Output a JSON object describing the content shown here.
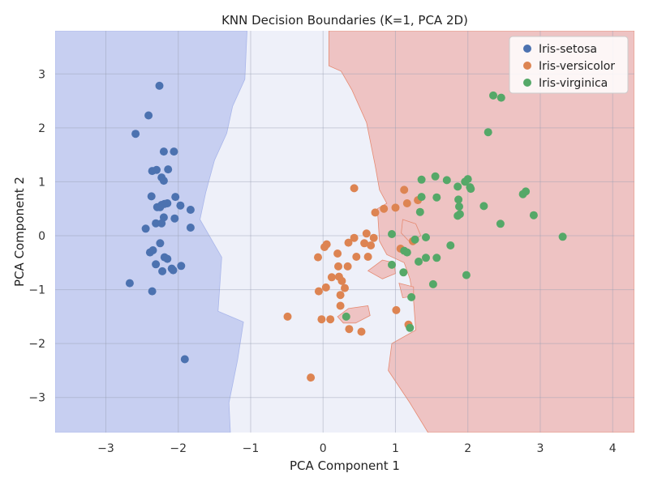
{
  "chart_data": {
    "type": "scatter",
    "title": "KNN Decision Boundaries (K=1, PCA 2D)",
    "xlabel": "PCA Component 1",
    "ylabel": "PCA Component 2",
    "xlim": [
      -3.7,
      4.3
    ],
    "ylim": [
      -3.65,
      3.8
    ],
    "xticks": [
      -3,
      -2,
      -1,
      0,
      1,
      2,
      3,
      4
    ],
    "yticks": [
      -3,
      -2,
      -1,
      0,
      1,
      2,
      3
    ],
    "grid": true,
    "legend_position": "top-right",
    "regions": [
      {
        "class": "Iris-setosa",
        "color": "#c7cff1",
        "polygon": [
          [
            -3.7,
            3.8
          ],
          [
            -1.05,
            3.8
          ],
          [
            -1.08,
            2.9
          ],
          [
            -1.25,
            2.4
          ],
          [
            -1.33,
            1.9
          ],
          [
            -1.5,
            1.4
          ],
          [
            -1.62,
            0.8
          ],
          [
            -1.7,
            0.3
          ],
          [
            -1.4,
            -0.4
          ],
          [
            -1.45,
            -1.4
          ],
          [
            -1.1,
            -1.6
          ],
          [
            -1.18,
            -2.3
          ],
          [
            -1.3,
            -3.1
          ],
          [
            -1.28,
            -3.65
          ],
          [
            -3.7,
            -3.65
          ]
        ]
      },
      {
        "class": "Iris-virginica",
        "color": "#eec3c3",
        "polygon": [
          [
            0.08,
            3.8
          ],
          [
            4.3,
            3.8
          ],
          [
            4.3,
            -3.65
          ],
          [
            1.45,
            -3.65
          ],
          [
            1.2,
            -3.1
          ],
          [
            0.9,
            -2.5
          ],
          [
            0.95,
            -2.0
          ],
          [
            1.28,
            -1.75
          ],
          [
            1.25,
            -1.2
          ],
          [
            1.2,
            -0.8
          ],
          [
            1.12,
            -0.5
          ],
          [
            0.88,
            -0.35
          ],
          [
            0.78,
            -0.1
          ],
          [
            0.75,
            0.5
          ],
          [
            0.88,
            0.6
          ],
          [
            0.78,
            0.85
          ],
          [
            0.72,
            1.3
          ],
          [
            0.6,
            2.1
          ],
          [
            0.4,
            2.7
          ],
          [
            0.25,
            3.05
          ],
          [
            0.08,
            3.15
          ]
        ]
      },
      {
        "class": "Iris-virginica",
        "color": "#eec3c3",
        "polygon": [
          [
            0.62,
            -0.65
          ],
          [
            0.82,
            -0.45
          ],
          [
            0.98,
            -0.5
          ],
          [
            1.0,
            -0.7
          ],
          [
            0.82,
            -0.8
          ]
        ]
      },
      {
        "class": "Iris-virginica",
        "color": "#eec3c3",
        "polygon": [
          [
            0.2,
            -1.5
          ],
          [
            0.35,
            -1.35
          ],
          [
            0.62,
            -1.3
          ],
          [
            0.65,
            -1.48
          ],
          [
            0.45,
            -1.62
          ],
          [
            0.28,
            -1.62
          ]
        ]
      },
      {
        "class": "Iris-virginica",
        "color": "#eec3c3",
        "polygon": [
          [
            1.05,
            -0.88
          ],
          [
            1.25,
            -0.95
          ],
          [
            1.25,
            -1.12
          ],
          [
            1.1,
            -1.15
          ]
        ]
      },
      {
        "class": "Iris-virginica",
        "color": "#eec3c3",
        "polygon": [
          [
            1.1,
            0.3
          ],
          [
            1.28,
            0.22
          ],
          [
            1.35,
            0.0
          ],
          [
            1.2,
            -0.12
          ],
          [
            1.08,
            0.05
          ]
        ]
      }
    ],
    "background_color": "#eef0f9",
    "series": [
      {
        "name": "Iris-setosa",
        "color": "#4c72b0",
        "points": [
          [
            -2.26,
            2.78
          ],
          [
            -2.41,
            2.23
          ],
          [
            -2.59,
            1.89
          ],
          [
            -2.2,
            1.56
          ],
          [
            -2.06,
            1.56
          ],
          [
            -2.36,
            1.2
          ],
          [
            -2.3,
            1.22
          ],
          [
            -2.14,
            1.23
          ],
          [
            -2.23,
            1.08
          ],
          [
            -2.2,
            1.02
          ],
          [
            -2.37,
            0.73
          ],
          [
            -2.04,
            0.72
          ],
          [
            -1.83,
            0.48
          ],
          [
            -2.29,
            0.53
          ],
          [
            -2.19,
            0.59
          ],
          [
            -2.15,
            0.6
          ],
          [
            -2.23,
            0.57
          ],
          [
            -1.97,
            0.56
          ],
          [
            -2.25,
            0.53
          ],
          [
            -2.2,
            0.34
          ],
          [
            -2.05,
            0.32
          ],
          [
            -2.31,
            0.23
          ],
          [
            -2.23,
            0.23
          ],
          [
            -2.45,
            0.13
          ],
          [
            -1.83,
            0.15
          ],
          [
            -2.25,
            -0.14
          ],
          [
            -2.35,
            -0.27
          ],
          [
            -2.39,
            -0.31
          ],
          [
            -2.19,
            -0.4
          ],
          [
            -2.15,
            -0.43
          ],
          [
            -2.31,
            -0.53
          ],
          [
            -1.96,
            -0.56
          ],
          [
            -2.09,
            -0.61
          ],
          [
            -2.07,
            -0.64
          ],
          [
            -2.22,
            -0.66
          ],
          [
            -2.67,
            -0.88
          ],
          [
            -2.36,
            -1.03
          ],
          [
            -1.91,
            -2.29
          ]
        ]
      },
      {
        "class": "",
        "name": "Iris-versicolor",
        "color": "#dd8452",
        "points": [
          [
            0.43,
            0.88
          ],
          [
            1.12,
            0.85
          ],
          [
            1.31,
            0.66
          ],
          [
            1.0,
            0.52
          ],
          [
            0.84,
            0.5
          ],
          [
            1.16,
            0.6
          ],
          [
            0.72,
            0.43
          ],
          [
            0.6,
            0.04
          ],
          [
            0.43,
            -0.04
          ],
          [
            0.7,
            -0.04
          ],
          [
            0.57,
            -0.14
          ],
          [
            0.66,
            -0.18
          ],
          [
            0.35,
            -0.13
          ],
          [
            0.05,
            -0.16
          ],
          [
            0.02,
            -0.21
          ],
          [
            1.24,
            -0.1
          ],
          [
            1.07,
            -0.24
          ],
          [
            0.2,
            -0.33
          ],
          [
            0.46,
            -0.39
          ],
          [
            0.62,
            -0.39
          ],
          [
            -0.07,
            -0.4
          ],
          [
            0.21,
            -0.57
          ],
          [
            0.34,
            -0.57
          ],
          [
            0.12,
            -0.77
          ],
          [
            0.22,
            -0.76
          ],
          [
            0.26,
            -0.84
          ],
          [
            0.3,
            -0.97
          ],
          [
            0.04,
            -0.96
          ],
          [
            -0.06,
            -1.03
          ],
          [
            0.24,
            -1.1
          ],
          [
            0.24,
            -1.3
          ],
          [
            -0.49,
            -1.5
          ],
          [
            -0.02,
            -1.55
          ],
          [
            0.1,
            -1.55
          ],
          [
            0.36,
            -1.73
          ],
          [
            0.53,
            -1.78
          ],
          [
            1.01,
            -1.38
          ],
          [
            1.18,
            -1.65
          ],
          [
            -0.17,
            -2.63
          ]
        ]
      },
      {
        "name": "Iris-virginica",
        "color": "#55a868",
        "points": [
          [
            2.35,
            2.6
          ],
          [
            2.46,
            2.56
          ],
          [
            2.28,
            1.92
          ],
          [
            1.36,
            1.04
          ],
          [
            1.55,
            1.1
          ],
          [
            1.71,
            1.03
          ],
          [
            1.96,
            1.0
          ],
          [
            2.0,
            1.05
          ],
          [
            1.86,
            0.91
          ],
          [
            2.03,
            0.9
          ],
          [
            2.04,
            0.87
          ],
          [
            1.36,
            0.72
          ],
          [
            1.57,
            0.71
          ],
          [
            1.87,
            0.67
          ],
          [
            2.76,
            0.77
          ],
          [
            2.8,
            0.82
          ],
          [
            2.22,
            0.55
          ],
          [
            1.88,
            0.54
          ],
          [
            1.89,
            0.4
          ],
          [
            1.86,
            0.37
          ],
          [
            1.34,
            0.44
          ],
          [
            2.91,
            0.38
          ],
          [
            2.45,
            0.22
          ],
          [
            0.95,
            0.03
          ],
          [
            1.42,
            -0.03
          ],
          [
            1.27,
            -0.07
          ],
          [
            1.12,
            -0.28
          ],
          [
            1.16,
            -0.31
          ],
          [
            1.76,
            -0.18
          ],
          [
            3.31,
            -0.02
          ],
          [
            0.95,
            -0.54
          ],
          [
            1.32,
            -0.48
          ],
          [
            1.42,
            -0.41
          ],
          [
            1.57,
            -0.41
          ],
          [
            1.11,
            -0.68
          ],
          [
            1.52,
            -0.9
          ],
          [
            1.98,
            -0.73
          ],
          [
            1.22,
            -1.14
          ],
          [
            0.32,
            -1.5
          ],
          [
            1.2,
            -1.71
          ]
        ]
      }
    ]
  }
}
